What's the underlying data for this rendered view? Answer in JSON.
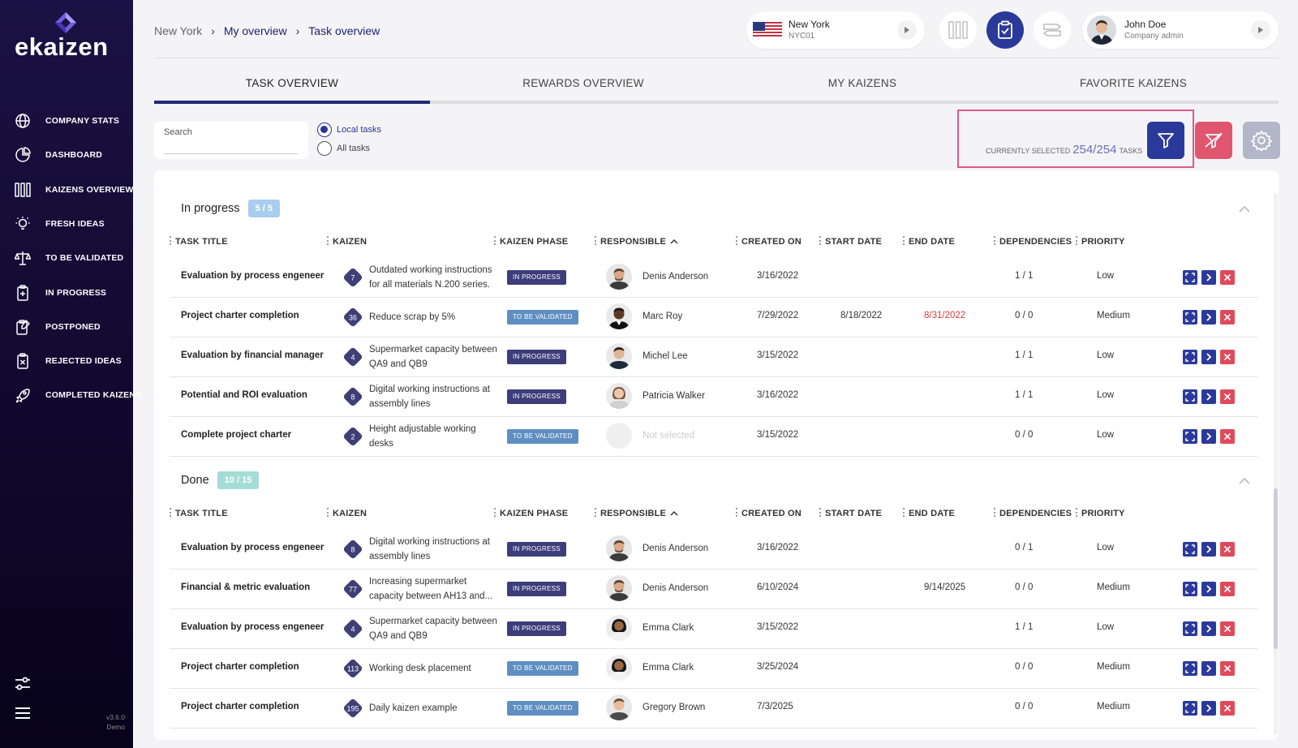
{
  "brand": {
    "logo_text": "ekaizen",
    "accent": "#6d5fe0"
  },
  "sidebar": {
    "items": [
      {
        "label": "COMPANY STATS",
        "icon": "globe-icon"
      },
      {
        "label": "DASHBOARD",
        "icon": "pie-chart-icon"
      },
      {
        "label": "KAIZENS OVERVIEW",
        "icon": "kanban-icon"
      },
      {
        "label": "FRESH IDEAS",
        "icon": "lightbulb-icon"
      },
      {
        "label": "TO BE VALIDATED",
        "icon": "scale-icon"
      },
      {
        "label": "IN PROGRESS",
        "icon": "clipboard-progress-icon"
      },
      {
        "label": "POSTPONED",
        "icon": "clipboard-postponed-icon"
      },
      {
        "label": "REJECTED IDEAS",
        "icon": "clipboard-rejected-icon"
      },
      {
        "label": "COMPLETED KAIZENS",
        "icon": "rocket-icon"
      }
    ],
    "version": "v3.6.0",
    "env": "Demo"
  },
  "header": {
    "breadcrumb": [
      "New York",
      "My overview",
      "Task overview"
    ],
    "location": {
      "name": "New York",
      "code": "NYC01"
    },
    "user": {
      "name": "John Doe",
      "role": "Company admin"
    }
  },
  "tabs": [
    {
      "label": "TASK OVERVIEW",
      "active": true
    },
    {
      "label": "REWARDS OVERVIEW",
      "active": false
    },
    {
      "label": "MY KAIZENS",
      "active": false
    },
    {
      "label": "FAVORITE KAIZENS",
      "active": false
    }
  ],
  "filters": {
    "search_label": "Search",
    "search_value": "",
    "radio_local": "Local tasks",
    "radio_all": "All tasks",
    "selected_prefix": "CURRENTLY SELECTED",
    "selected_count": "254/254",
    "selected_suffix": "TASKS"
  },
  "columns": [
    "TASK TITLE",
    "KAIZEN",
    "KAIZEN PHASE",
    "RESPONSIBLE",
    "CREATED ON",
    "START DATE",
    "END DATE",
    "DEPENDENCIES",
    "PRIORITY"
  ],
  "sections": [
    {
      "title": "In progress",
      "badge": "5 / 5",
      "badge_color": "#a9cdef",
      "rows": [
        {
          "title": "Evaluation by process engeneer",
          "num": "7",
          "kaizen": "Outdated working instructions for all materials N.200 series.",
          "phase": "IN PROGRESS",
          "responsible": "Denis Anderson",
          "created": "3/16/2022",
          "start": "",
          "end": "",
          "end_overdue": false,
          "deps": "1 / 1",
          "priority": "Low",
          "avatar": "m1"
        },
        {
          "title": "Project charter completion",
          "num": "36",
          "kaizen": "Reduce scrap by 5%",
          "phase": "TO BE VALIDATED",
          "responsible": "Marc Roy",
          "created": "7/29/2022",
          "start": "8/18/2022",
          "end": "8/31/2022",
          "end_overdue": true,
          "deps": "0 / 0",
          "priority": "Medium",
          "avatar": "m2"
        },
        {
          "title": "Evaluation by financial manager",
          "num": "4",
          "kaizen": "Supermarket capacity between QA9 and QB9",
          "phase": "IN PROGRESS",
          "responsible": "Michel Lee",
          "created": "3/15/2022",
          "start": "",
          "end": "",
          "end_overdue": false,
          "deps": "1 / 1",
          "priority": "Low",
          "avatar": "m3"
        },
        {
          "title": "Potential and ROI evaluation",
          "num": "8",
          "kaizen": "Digital working instructions at assembly lines",
          "phase": "IN PROGRESS",
          "responsible": "Patricia Walker",
          "created": "3/16/2022",
          "start": "",
          "end": "",
          "end_overdue": false,
          "deps": "1 / 1",
          "priority": "Low",
          "avatar": "f1"
        },
        {
          "title": "Complete project charter",
          "num": "2",
          "kaizen": "Height adjustable working desks",
          "phase": "TO BE VALIDATED",
          "responsible": "Not selected",
          "created": "3/15/2022",
          "start": "",
          "end": "",
          "end_overdue": false,
          "deps": "0 / 0",
          "priority": "Low",
          "avatar": "none"
        }
      ]
    },
    {
      "title": "Done",
      "badge": "10 / 15",
      "badge_color": "#a5dcd8",
      "rows": [
        {
          "title": "Evaluation by process engeneer",
          "num": "8",
          "kaizen": "Digital working instructions at assembly lines",
          "phase": "IN PROGRESS",
          "responsible": "Denis Anderson",
          "created": "3/16/2022",
          "start": "",
          "end": "",
          "end_overdue": false,
          "deps": "0 / 1",
          "priority": "Low",
          "avatar": "m1"
        },
        {
          "title": "Financial & metric evaluation",
          "num": "77",
          "kaizen": "Increasing supermarket capacity between AH13 and...",
          "phase": "IN PROGRESS",
          "responsible": "Denis Anderson",
          "created": "6/10/2024",
          "start": "",
          "end": "9/14/2025",
          "end_overdue": false,
          "deps": "0 / 0",
          "priority": "Medium",
          "avatar": "m1"
        },
        {
          "title": "Evaluation by process engeneer",
          "num": "4",
          "kaizen": "Supermarket capacity between QA9 and QB9",
          "phase": "IN PROGRESS",
          "responsible": "Emma Clark",
          "created": "3/15/2022",
          "start": "",
          "end": "",
          "end_overdue": false,
          "deps": "1 / 1",
          "priority": "Low",
          "avatar": "f2"
        },
        {
          "title": "Project charter completion",
          "num": "113",
          "kaizen": "Working desk placement",
          "phase": "TO BE VALIDATED",
          "responsible": "Emma Clark",
          "created": "3/25/2024",
          "start": "",
          "end": "",
          "end_overdue": false,
          "deps": "0 / 0",
          "priority": "Medium",
          "avatar": "f2"
        },
        {
          "title": "Project charter completion",
          "num": "195",
          "kaizen": "Daily kaizen example",
          "phase": "TO BE VALIDATED",
          "responsible": "Gregory Brown",
          "created": "7/3/2025",
          "start": "",
          "end": "",
          "end_overdue": false,
          "deps": "0 / 0",
          "priority": "Medium",
          "avatar": "m4"
        }
      ]
    }
  ],
  "colors": {
    "in_progress_chip": "#3d3d7a",
    "validate_chip": "#5f8fc2",
    "overdue": "#d63b3b",
    "filter_btn": "#2b3a9a",
    "clear_btn": "#e0566e",
    "settings_btn": "#b3b6c8",
    "row_action_blue": "#2b3a9a",
    "row_action_red": "#e04a5a"
  }
}
